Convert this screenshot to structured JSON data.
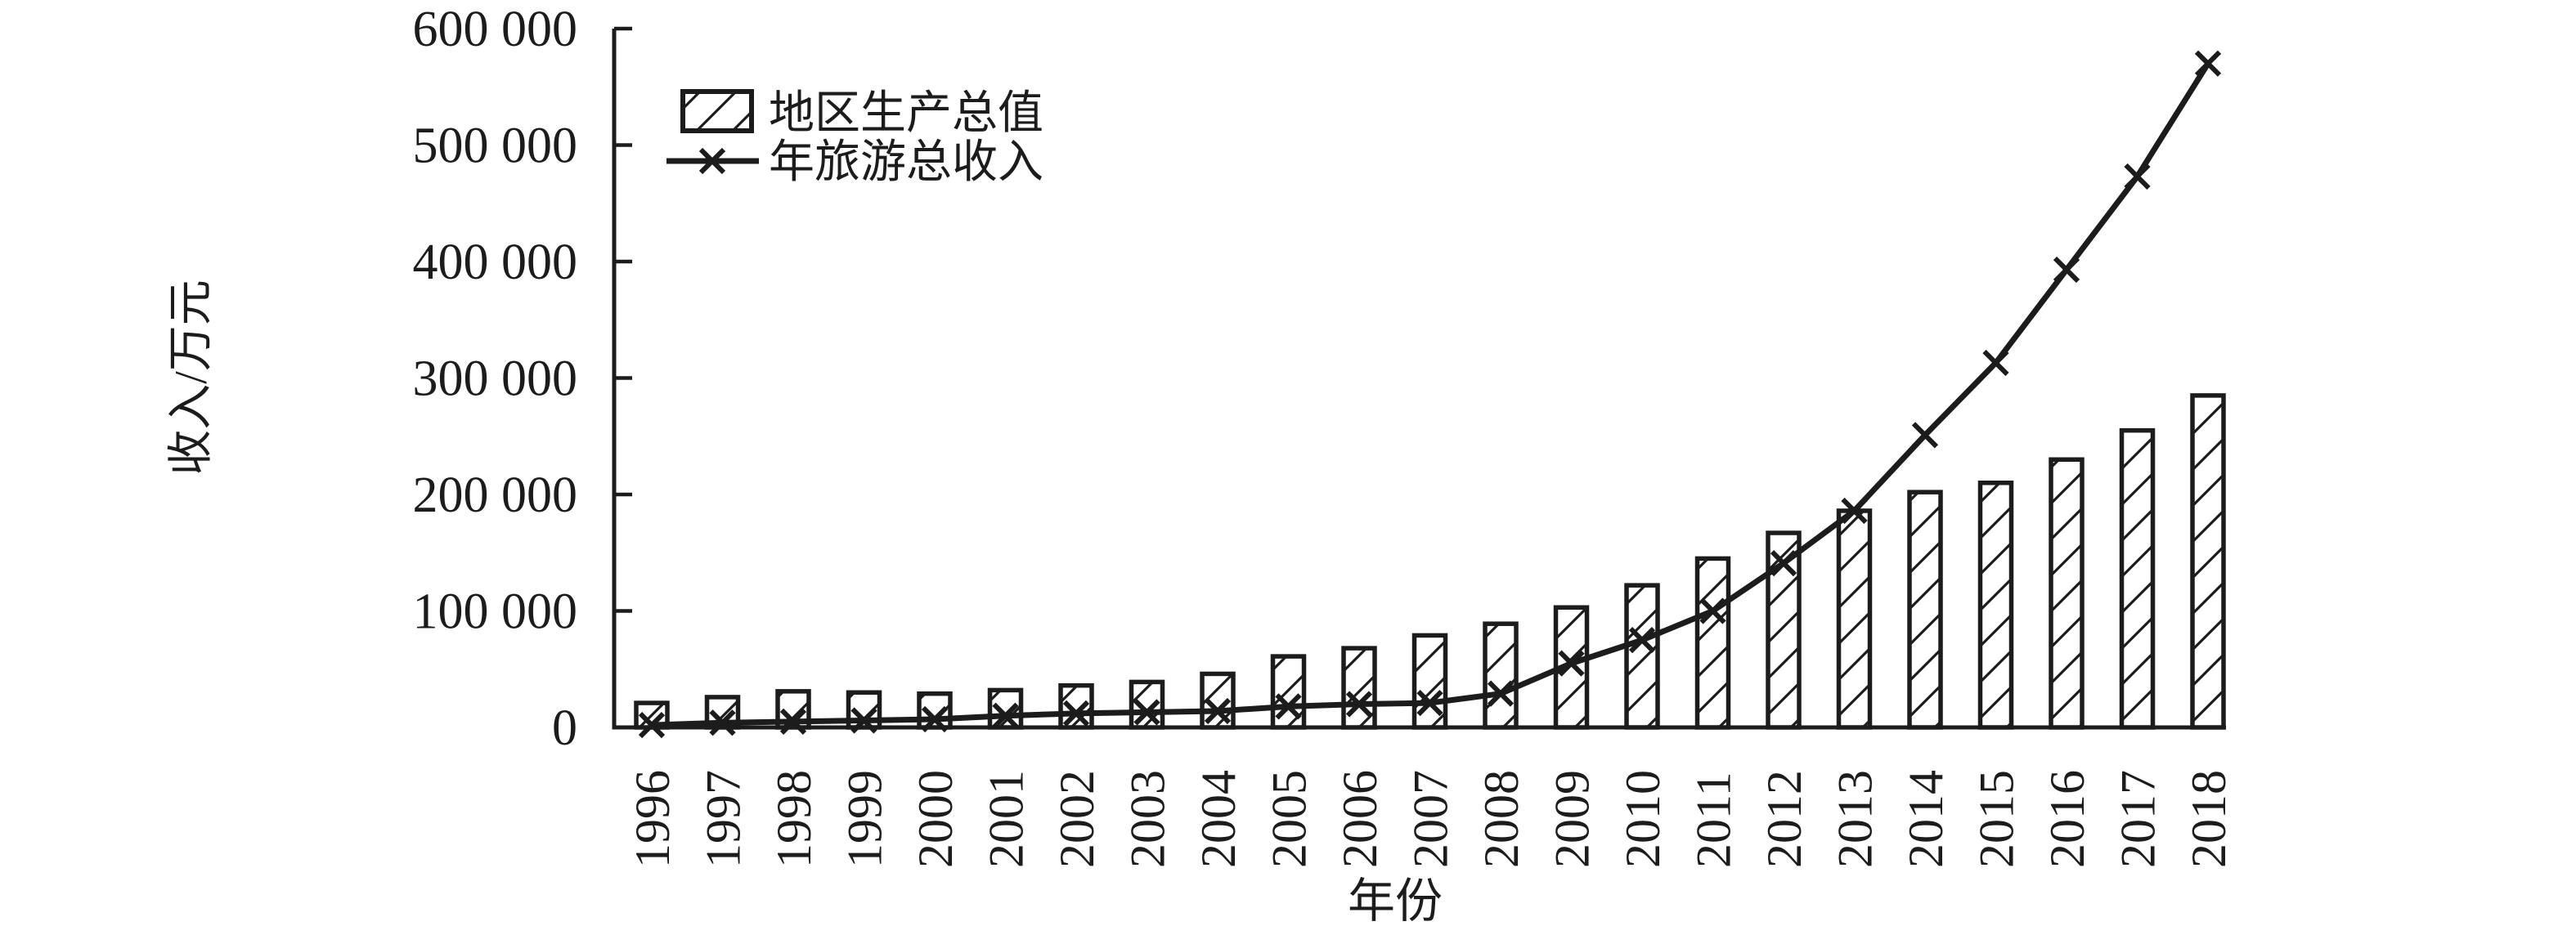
{
  "figure": {
    "background_color": "#ffffff",
    "ink_color": "#1c1c1c"
  },
  "chart_data": {
    "type": "bar+line",
    "title": "",
    "xlabel": "年份",
    "ylabel": "收入/万元",
    "x": [
      1996,
      1997,
      1998,
      1999,
      2000,
      2001,
      2002,
      2003,
      2004,
      2005,
      2006,
      2007,
      2008,
      2009,
      2010,
      2011,
      2012,
      2013,
      2014,
      2015,
      2016,
      2017,
      2018
    ],
    "series": [
      {
        "name": "地区生产总值",
        "type": "bar",
        "style": "white fill with black diagonal hatch, black outline",
        "values": [
          21000,
          26000,
          31000,
          30000,
          29000,
          32000,
          36000,
          39000,
          46000,
          61000,
          68000,
          79000,
          89000,
          103000,
          122000,
          145000,
          167000,
          186000,
          202000,
          210000,
          230000,
          255000,
          285000
        ]
      },
      {
        "name": "年旅游总收入",
        "type": "line",
        "marker": "x",
        "style": "solid black line with x markers",
        "values": [
          2000,
          4000,
          5000,
          6000,
          7000,
          10000,
          12000,
          13000,
          14000,
          18000,
          20000,
          21000,
          29000,
          55000,
          75000,
          100000,
          141000,
          186000,
          251000,
          313000,
          393000,
          473000,
          570000
        ]
      }
    ],
    "ylim": [
      0,
      600000
    ],
    "ytick_interval": 100000,
    "ytick_labels": [
      "0",
      "100 000",
      "200 000",
      "300 000",
      "400 000",
      "500 000",
      "600 000"
    ],
    "grid": false,
    "legend_position": "inside top-left",
    "x_tick_label_rotation_deg": 90
  }
}
